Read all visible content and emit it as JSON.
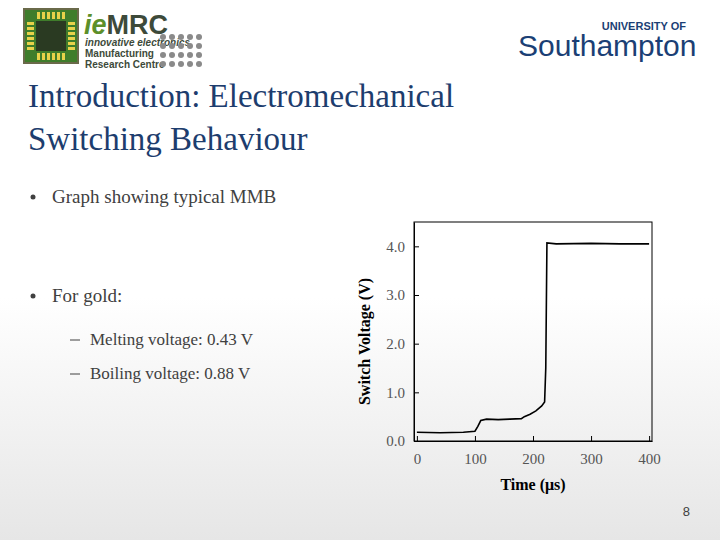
{
  "slide": {
    "logo_mark": [
      "ie",
      "MRC"
    ],
    "logo_lines": [
      "innovative electronics",
      "Manufacturing",
      "Research Centre"
    ],
    "university": [
      "UNIVERSITY OF",
      "Southampton"
    ],
    "title_lines": [
      "Introduction: Electromechanical",
      "Switching Behaviour"
    ],
    "bullets": [
      "Graph showing typical MMB",
      "For gold:"
    ],
    "sub_bullets": [
      "Melting voltage: 0.43 V",
      "Boiling voltage: 0.88 V"
    ],
    "page_number": "8"
  },
  "chart_data": {
    "type": "line",
    "x_label": "Time (μs)",
    "y_label": "Switch Voltage (V)",
    "x": [
      0,
      40,
      80,
      100,
      105,
      110,
      120,
      140,
      160,
      180,
      185,
      195,
      205,
      215,
      220,
      222,
      224,
      240,
      300,
      350,
      400
    ],
    "values": [
      0.18,
      0.17,
      0.18,
      0.2,
      0.3,
      0.42,
      0.45,
      0.44,
      0.45,
      0.46,
      0.5,
      0.55,
      0.62,
      0.72,
      0.8,
      1.5,
      4.07,
      4.05,
      4.06,
      4.05,
      4.05
    ],
    "color": "#000000",
    "xlim": [
      -5,
      405
    ],
    "ylim": [
      0,
      4.5
    ],
    "xticks": [
      0,
      100,
      200,
      300,
      400
    ],
    "yticks": [
      {
        "value": 0,
        "label": "0.0"
      },
      {
        "value": 1,
        "label": "1.0"
      },
      {
        "value": 2,
        "label": "2.0"
      },
      {
        "value": 3,
        "label": "3.0"
      },
      {
        "value": 4,
        "label": "4.0"
      }
    ]
  }
}
